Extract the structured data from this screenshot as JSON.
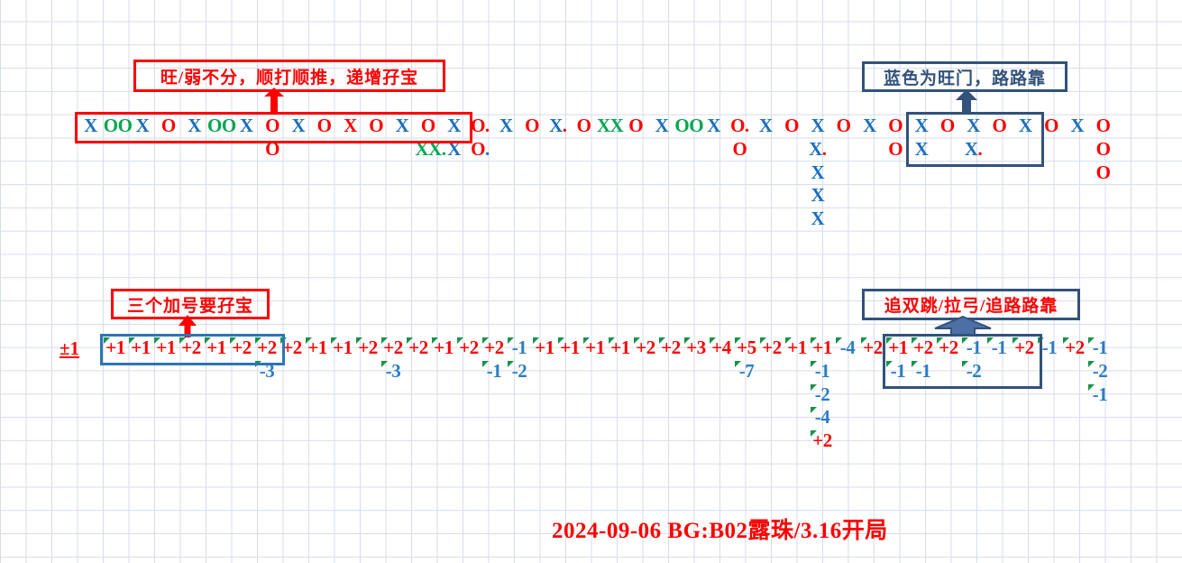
{
  "labels": {
    "top_left": "旺/弱不分，顺打顺推，递增孖宝",
    "top_right": "蓝色为旺门，路路靠",
    "bottom_left": "三个加号要孖宝",
    "bottom_right": "追双跳/拉弓/追路路靠",
    "unit_cell": "±1"
  },
  "footer": {
    "note": "2024-09-06 BG:B02露珠/3.16开局"
  },
  "colors": {
    "r": "#fe0000",
    "b": "#1a6fbc",
    "g": "#00a650",
    "n": "#2a7dc7",
    "navy": "#32527b",
    "arrow_fill": "#4d6fa3",
    "bright_blue_box": "#2e75b6",
    "triangle": "#17934b"
  },
  "top_road": {
    "cells": [
      [
        1,
        1,
        "X",
        "b"
      ],
      [
        2,
        1,
        "OO",
        "g"
      ],
      [
        3,
        1,
        "X",
        "b"
      ],
      [
        4,
        1,
        "O",
        "r"
      ],
      [
        5,
        1,
        "X",
        "b"
      ],
      [
        6,
        1,
        "OO",
        "g"
      ],
      [
        7,
        1,
        "X",
        "b"
      ],
      [
        8,
        1,
        "O",
        "r"
      ],
      [
        9,
        1,
        "X",
        "b"
      ],
      [
        10,
        1,
        "O",
        "r"
      ],
      [
        11,
        1,
        "X",
        "r"
      ],
      [
        12,
        1,
        "O",
        "r"
      ],
      [
        13,
        1,
        "X",
        "b"
      ],
      [
        14,
        1,
        "O",
        "r"
      ],
      [
        15,
        1,
        "X",
        "b"
      ],
      [
        16,
        1,
        "O.",
        "r"
      ],
      [
        17,
        1,
        "X",
        "b"
      ],
      [
        18,
        1,
        "O",
        "r"
      ],
      [
        19,
        1,
        "X",
        "b",
        ".",
        "r"
      ],
      [
        20,
        1,
        "O",
        "r"
      ],
      [
        21,
        1,
        "XX",
        "g"
      ],
      [
        22,
        1,
        "O",
        "r"
      ],
      [
        23,
        1,
        "X",
        "b"
      ],
      [
        24,
        1,
        "OO",
        "g"
      ],
      [
        25,
        1,
        "X",
        "b"
      ],
      [
        26,
        1,
        "O.",
        "r"
      ],
      [
        27,
        1,
        "X",
        "b"
      ],
      [
        28,
        1,
        "O",
        "r"
      ],
      [
        29,
        1,
        "X",
        "b"
      ],
      [
        30,
        1,
        "O",
        "r"
      ],
      [
        31,
        1,
        "X",
        "b"
      ],
      [
        32,
        1,
        "O",
        "r"
      ],
      [
        33,
        1,
        "X",
        "b"
      ],
      [
        34,
        1,
        "O",
        "r"
      ],
      [
        35,
        1,
        "X",
        "b"
      ],
      [
        36,
        1,
        "O",
        "r"
      ],
      [
        37,
        1,
        "X",
        "b"
      ],
      [
        38,
        1,
        "O",
        "r"
      ],
      [
        39,
        1,
        "X",
        "b"
      ],
      [
        40,
        1,
        "O",
        "r"
      ],
      [
        8,
        2,
        "O",
        "r"
      ],
      [
        14,
        2,
        "XX.",
        "g"
      ],
      [
        15,
        2,
        "X",
        "b"
      ],
      [
        16,
        2,
        "O",
        "r",
        ".",
        "b"
      ],
      [
        26,
        2,
        "O",
        "r"
      ],
      [
        29,
        2,
        "X",
        "b",
        ".",
        "r"
      ],
      [
        32,
        2,
        "O",
        "r"
      ],
      [
        33,
        2,
        "X",
        "b"
      ],
      [
        35,
        2,
        "X",
        "b",
        ".",
        "r"
      ],
      [
        40,
        2,
        "O",
        "r"
      ],
      [
        29,
        3,
        "X",
        "b"
      ],
      [
        40,
        3,
        "O",
        "r"
      ],
      [
        29,
        4,
        "X",
        "b"
      ],
      [
        29,
        5,
        "X",
        "b"
      ]
    ],
    "boxes": [
      {
        "from_col": 1,
        "to_col": 15,
        "rows": 1,
        "style": "red"
      },
      {
        "from_col": 33,
        "to_col": 37,
        "rows": 2,
        "style": "navy"
      }
    ]
  },
  "bottom_road": {
    "cells": [
      [
        1,
        1,
        "+1",
        "r"
      ],
      [
        2,
        1,
        "+1",
        "r"
      ],
      [
        3,
        1,
        "+1",
        "r"
      ],
      [
        4,
        1,
        "+2",
        "r"
      ],
      [
        5,
        1,
        "+1",
        "r"
      ],
      [
        6,
        1,
        "+2",
        "r"
      ],
      [
        7,
        1,
        "+2",
        "r"
      ],
      [
        8,
        1,
        "+2",
        "r"
      ],
      [
        9,
        1,
        "+1",
        "r"
      ],
      [
        10,
        1,
        "+1",
        "r"
      ],
      [
        11,
        1,
        "+2",
        "r"
      ],
      [
        12,
        1,
        "+2",
        "r"
      ],
      [
        13,
        1,
        "+2",
        "r"
      ],
      [
        14,
        1,
        "+1",
        "r"
      ],
      [
        15,
        1,
        "+2",
        "r"
      ],
      [
        16,
        1,
        "+2",
        "r"
      ],
      [
        17,
        1,
        "-1",
        "n"
      ],
      [
        18,
        1,
        "+1",
        "r"
      ],
      [
        19,
        1,
        "+1",
        "r"
      ],
      [
        20,
        1,
        "+1",
        "r"
      ],
      [
        21,
        1,
        "+1",
        "r"
      ],
      [
        22,
        1,
        "+2",
        "r"
      ],
      [
        23,
        1,
        "+2",
        "r"
      ],
      [
        24,
        1,
        "+3",
        "r"
      ],
      [
        25,
        1,
        "+4",
        "r"
      ],
      [
        26,
        1,
        "+5",
        "r"
      ],
      [
        27,
        1,
        "+2",
        "r"
      ],
      [
        28,
        1,
        "+1",
        "r"
      ],
      [
        29,
        1,
        "+1",
        "r"
      ],
      [
        30,
        1,
        "-4",
        "n"
      ],
      [
        31,
        1,
        "+2",
        "r"
      ],
      [
        32,
        1,
        "+1",
        "r"
      ],
      [
        33,
        1,
        "+2",
        "r"
      ],
      [
        34,
        1,
        "+2",
        "r"
      ],
      [
        35,
        1,
        "-1",
        "n"
      ],
      [
        36,
        1,
        "-1",
        "n"
      ],
      [
        37,
        1,
        "+2",
        "r"
      ],
      [
        38,
        1,
        "-1",
        "n"
      ],
      [
        39,
        1,
        "+2",
        "r"
      ],
      [
        40,
        1,
        "-1",
        "n"
      ],
      [
        7,
        2,
        "-3",
        "n"
      ],
      [
        12,
        2,
        "-3",
        "n"
      ],
      [
        16,
        2,
        "-1",
        "n"
      ],
      [
        17,
        2,
        "-2",
        "n"
      ],
      [
        26,
        2,
        "-7",
        "n"
      ],
      [
        29,
        2,
        "-1",
        "n"
      ],
      [
        32,
        2,
        "-1",
        "n"
      ],
      [
        33,
        2,
        "-1",
        "n"
      ],
      [
        35,
        2,
        "-2",
        "n"
      ],
      [
        40,
        2,
        "-2",
        "n"
      ],
      [
        29,
        3,
        "-2",
        "n"
      ],
      [
        40,
        3,
        "-1",
        "n"
      ],
      [
        29,
        4,
        "-4",
        "n"
      ],
      [
        29,
        5,
        "+2",
        "r"
      ]
    ],
    "boxes": [
      {
        "from_col": 1,
        "to_col": 7,
        "rows": 1,
        "style": "blue"
      },
      {
        "from_col": 32,
        "to_col": 37,
        "rows": 2,
        "style": "navy"
      }
    ]
  }
}
